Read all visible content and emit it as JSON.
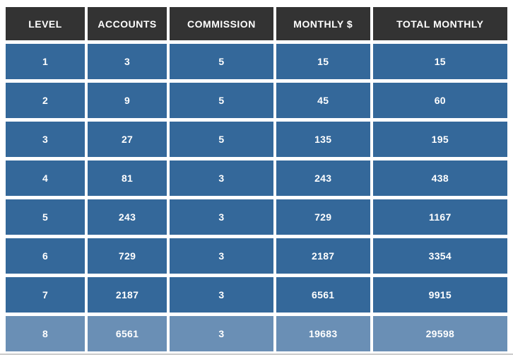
{
  "table": {
    "columns": [
      "LEVEL",
      "ACCOUNTS",
      "COMMISSION",
      "MONTHLY $",
      "TOTAL MONTHLY"
    ],
    "rows": [
      [
        "1",
        "3",
        "5",
        "15",
        "15"
      ],
      [
        "2",
        "9",
        "5",
        "45",
        "60"
      ],
      [
        "3",
        "27",
        "5",
        "135",
        "195"
      ],
      [
        "4",
        "81",
        "3",
        "243",
        "438"
      ],
      [
        "5",
        "243",
        "3",
        "729",
        "1167"
      ],
      [
        "6",
        "729",
        "3",
        "2187",
        "3354"
      ],
      [
        "7",
        "2187",
        "3",
        "6561",
        "9915"
      ],
      [
        "8",
        "6561",
        "3",
        "19683",
        "29598"
      ]
    ],
    "last_row_highlighted": true
  },
  "colors": {
    "header_bg": "#333333",
    "row_bg": "#34689A",
    "last_row_bg": "#6A8FB5",
    "text": "#FFFFFF",
    "page_bg": "#FFFFFF",
    "bottom_rule": "#C9C9C9"
  },
  "chart_data": {
    "type": "table",
    "title": "",
    "columns": [
      "LEVEL",
      "ACCOUNTS",
      "COMMISSION",
      "MONTHLY $",
      "TOTAL MONTHLY"
    ],
    "rows": [
      [
        1,
        3,
        5,
        15,
        15
      ],
      [
        2,
        9,
        5,
        45,
        60
      ],
      [
        3,
        27,
        5,
        135,
        195
      ],
      [
        4,
        81,
        3,
        243,
        438
      ],
      [
        5,
        243,
        3,
        729,
        1167
      ],
      [
        6,
        729,
        3,
        2187,
        3354
      ],
      [
        7,
        2187,
        3,
        6561,
        9915
      ],
      [
        8,
        6561,
        3,
        19683,
        29598
      ]
    ]
  }
}
